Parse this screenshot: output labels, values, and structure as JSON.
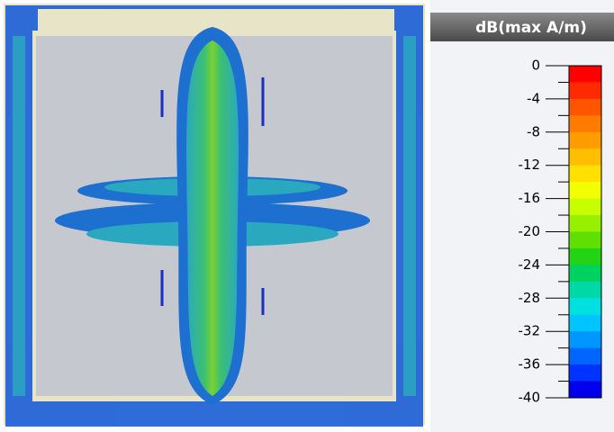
{
  "colorbar": {
    "title": "dB(max A/m)",
    "ticks": [
      0,
      -4,
      -8,
      -12,
      -16,
      -20,
      -24,
      -28,
      -32,
      -36,
      -40
    ],
    "colors": [
      "#ff0000",
      "#ff2a00",
      "#ff5500",
      "#ff7a00",
      "#ff9c00",
      "#ffbe00",
      "#ffe000",
      "#f2ff00",
      "#c8ff00",
      "#96f000",
      "#5ee000",
      "#22d414",
      "#00d260",
      "#00d8a8",
      "#00e0e0",
      "#00c4ff",
      "#0096ff",
      "#0066ff",
      "#0033ff",
      "#0000ee"
    ]
  }
}
